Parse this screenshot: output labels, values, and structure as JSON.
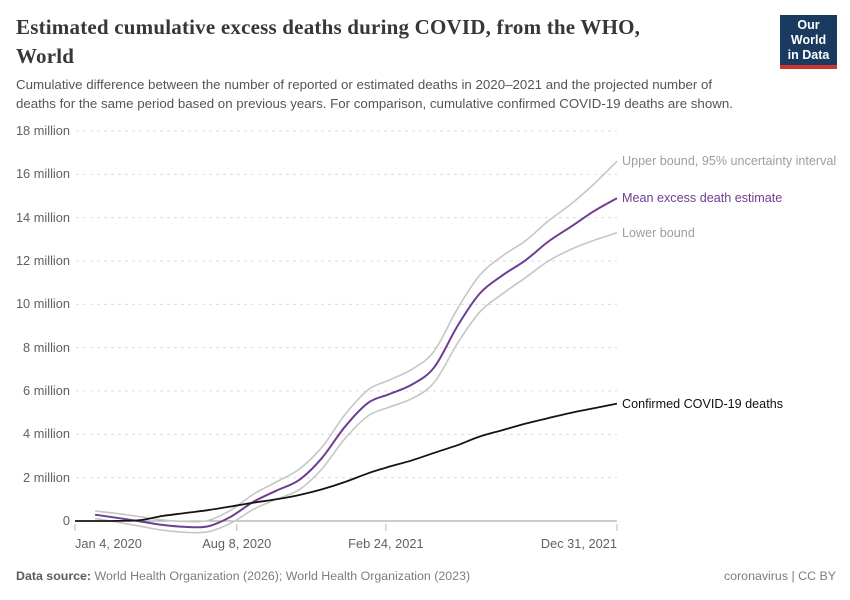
{
  "header": {
    "title_lines": [
      "Estimated cumulative excess deaths during COVID, from the WHO,",
      "World"
    ],
    "subtitle_lines": [
      "Cumulative difference between the number of reported or estimated deaths in 2020–2021 and the projected number of",
      "deaths for the same period based on previous years. For comparison, cumulative confirmed COVID-19 deaths are shown."
    ],
    "logo": {
      "line1": "Our World",
      "line2": "in Data"
    }
  },
  "footer": {
    "source_label": "Data source:",
    "source_value": " World Health Organization (2026); World Health Organization (2023)",
    "right_text": "coronavirus | CC BY"
  },
  "colors": {
    "mean_line": "#6d3e91",
    "bound_line": "#c6c6c6",
    "confirmed_line": "#141414",
    "gridline": "#dcdcdc",
    "zero_axis": "#9a9a9a",
    "tick_mark": "#b9b9b9",
    "bound_label": "#9e9e9e",
    "confirmed_label": "#111111",
    "logo_bg": "#1a3a5f",
    "logo_red": "#cf3528"
  },
  "chart_data": {
    "type": "line",
    "title": "Estimated cumulative excess deaths during COVID, from the WHO, World",
    "xlabel": "",
    "ylabel": "",
    "unit": "million deaths",
    "grid": "dashed horizontal gridlines",
    "legend_position": "labels at right end of lines",
    "x_range": [
      "2020-01-04",
      "2021-12-31"
    ],
    "ylim_millions": [
      0,
      18
    ],
    "y_ticks": [
      {
        "value": 0,
        "label": "0"
      },
      {
        "value": 2,
        "label": "2 million"
      },
      {
        "value": 4,
        "label": "4 million"
      },
      {
        "value": 6,
        "label": "6 million"
      },
      {
        "value": 8,
        "label": "8 million"
      },
      {
        "value": 10,
        "label": "10 million"
      },
      {
        "value": 12,
        "label": "12 million"
      },
      {
        "value": 14,
        "label": "14 million"
      },
      {
        "value": 16,
        "label": "16 million"
      },
      {
        "value": 18,
        "label": "18 million"
      }
    ],
    "x_ticks": [
      {
        "date": "2020-01-04",
        "label": "Jan 4, 2020",
        "align": "left"
      },
      {
        "date": "2020-08-08",
        "label": "Aug 8, 2020",
        "align": "center"
      },
      {
        "date": "2021-02-24",
        "label": "Feb 24, 2021",
        "align": "center"
      },
      {
        "date": "2021-12-31",
        "label": "Dec 31, 2021",
        "align": "right"
      }
    ],
    "series": [
      {
        "name": "Upper bound, 95% uncertainty interval",
        "color_key": "bound_line",
        "label_color_key": "bound_label",
        "stroke_width": 1.6,
        "points": [
          [
            "2020-01-31",
            0.46
          ],
          [
            "2020-02-29",
            0.35
          ],
          [
            "2020-03-31",
            0.2
          ],
          [
            "2020-04-30",
            0.05
          ],
          [
            "2020-05-31",
            -0.02
          ],
          [
            "2020-06-30",
            0.02
          ],
          [
            "2020-07-31",
            0.5
          ],
          [
            "2020-08-31",
            1.25
          ],
          [
            "2020-09-30",
            1.8
          ],
          [
            "2020-10-31",
            2.4
          ],
          [
            "2020-11-30",
            3.4
          ],
          [
            "2020-12-31",
            4.9
          ],
          [
            "2021-01-31",
            6.05
          ],
          [
            "2021-02-28",
            6.5
          ],
          [
            "2021-03-31",
            7.0
          ],
          [
            "2021-04-30",
            7.85
          ],
          [
            "2021-05-31",
            9.8
          ],
          [
            "2021-06-30",
            11.35
          ],
          [
            "2021-07-31",
            12.25
          ],
          [
            "2021-08-31",
            12.95
          ],
          [
            "2021-09-30",
            13.85
          ],
          [
            "2021-10-31",
            14.65
          ],
          [
            "2021-11-30",
            15.55
          ],
          [
            "2021-12-31",
            16.6
          ]
        ]
      },
      {
        "name": "Mean excess death estimate",
        "color_key": "mean_line",
        "label_color_key": "mean_line",
        "stroke_width": 2,
        "points": [
          [
            "2020-01-31",
            0.29
          ],
          [
            "2020-02-29",
            0.15
          ],
          [
            "2020-03-31",
            -0.02
          ],
          [
            "2020-04-30",
            -0.18
          ],
          [
            "2020-05-31",
            -0.27
          ],
          [
            "2020-06-30",
            -0.25
          ],
          [
            "2020-07-31",
            0.2
          ],
          [
            "2020-08-31",
            0.9
          ],
          [
            "2020-09-30",
            1.4
          ],
          [
            "2020-10-31",
            1.9
          ],
          [
            "2020-11-30",
            2.9
          ],
          [
            "2020-12-31",
            4.35
          ],
          [
            "2021-01-31",
            5.45
          ],
          [
            "2021-02-28",
            5.85
          ],
          [
            "2021-03-31",
            6.3
          ],
          [
            "2021-04-30",
            7.1
          ],
          [
            "2021-05-31",
            9.0
          ],
          [
            "2021-06-30",
            10.5
          ],
          [
            "2021-07-31",
            11.35
          ],
          [
            "2021-08-31",
            12.05
          ],
          [
            "2021-09-30",
            12.9
          ],
          [
            "2021-10-31",
            13.6
          ],
          [
            "2021-11-30",
            14.3
          ],
          [
            "2021-12-31",
            14.9
          ]
        ]
      },
      {
        "name": "Lower bound",
        "color_key": "bound_line",
        "label_color_key": "bound_label",
        "stroke_width": 1.6,
        "points": [
          [
            "2020-01-31",
            0.12
          ],
          [
            "2020-02-29",
            -0.05
          ],
          [
            "2020-03-31",
            -0.24
          ],
          [
            "2020-04-30",
            -0.42
          ],
          [
            "2020-05-31",
            -0.52
          ],
          [
            "2020-06-30",
            -0.5
          ],
          [
            "2020-07-31",
            -0.1
          ],
          [
            "2020-08-31",
            0.55
          ],
          [
            "2020-09-30",
            1.0
          ],
          [
            "2020-10-31",
            1.45
          ],
          [
            "2020-11-30",
            2.4
          ],
          [
            "2020-12-31",
            3.8
          ],
          [
            "2021-01-31",
            4.85
          ],
          [
            "2021-02-28",
            5.25
          ],
          [
            "2021-03-31",
            5.65
          ],
          [
            "2021-04-30",
            6.4
          ],
          [
            "2021-05-31",
            8.2
          ],
          [
            "2021-06-30",
            9.65
          ],
          [
            "2021-07-31",
            10.5
          ],
          [
            "2021-08-31",
            11.25
          ],
          [
            "2021-09-30",
            12.0
          ],
          [
            "2021-10-31",
            12.55
          ],
          [
            "2021-11-30",
            12.95
          ],
          [
            "2021-12-31",
            13.3
          ]
        ]
      },
      {
        "name": "Confirmed COVID-19 deaths",
        "color_key": "confirmed_line",
        "label_color_key": "confirmed_label",
        "stroke_width": 1.8,
        "points": [
          [
            "2020-01-04",
            0.0
          ],
          [
            "2020-01-31",
            0.0
          ],
          [
            "2020-02-29",
            0.003
          ],
          [
            "2020-03-31",
            0.04
          ],
          [
            "2020-04-30",
            0.23
          ],
          [
            "2020-05-31",
            0.37
          ],
          [
            "2020-06-30",
            0.5
          ],
          [
            "2020-07-31",
            0.67
          ],
          [
            "2020-08-31",
            0.85
          ],
          [
            "2020-09-30",
            1.0
          ],
          [
            "2020-10-31",
            1.2
          ],
          [
            "2020-11-30",
            1.46
          ],
          [
            "2020-12-31",
            1.8
          ],
          [
            "2021-01-31",
            2.2
          ],
          [
            "2021-02-28",
            2.5
          ],
          [
            "2021-03-31",
            2.8
          ],
          [
            "2021-04-30",
            3.15
          ],
          [
            "2021-05-31",
            3.5
          ],
          [
            "2021-06-30",
            3.9
          ],
          [
            "2021-07-31",
            4.2
          ],
          [
            "2021-08-31",
            4.5
          ],
          [
            "2021-09-30",
            4.75
          ],
          [
            "2021-10-31",
            5.0
          ],
          [
            "2021-11-30",
            5.2
          ],
          [
            "2021-12-31",
            5.42
          ]
        ]
      }
    ]
  }
}
